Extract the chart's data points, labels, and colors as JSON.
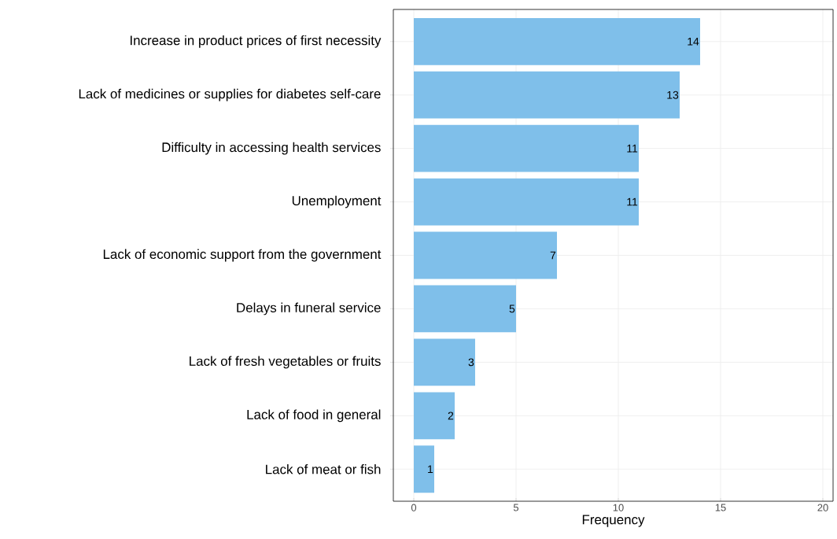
{
  "chart_data": {
    "type": "bar",
    "orientation": "horizontal",
    "xlabel": "Frequency",
    "categories": [
      "Increase in product prices of first necessity",
      "Lack of medicines or supplies for diabetes self-care",
      "Difficulty in accessing health services",
      "Unemployment",
      "Lack of economic support from the government",
      "Delays in funeral service",
      "Lack of fresh vegetables or fruits",
      "Lack of food in general",
      "Lack of meat or fish"
    ],
    "values": [
      14,
      13,
      11,
      11,
      7,
      5,
      3,
      2,
      1
    ],
    "color": "#7fbfea",
    "xlim": [
      -1,
      20.5
    ],
    "xticks": [
      0,
      5,
      10,
      15,
      20
    ],
    "grid": true,
    "data_labels": true
  }
}
